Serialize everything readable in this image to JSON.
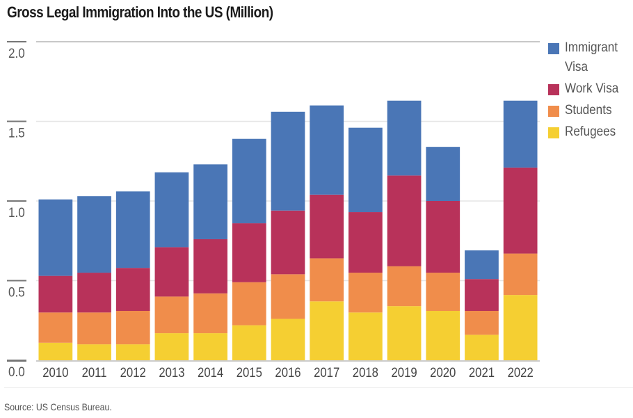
{
  "chart_data": {
    "type": "bar",
    "stacked": true,
    "title": "Gross Legal Immigration Into the US (Million)",
    "xlabel": "",
    "ylabel": "",
    "ylim": [
      0,
      2.0
    ],
    "yticks": [
      "0.0",
      "0.5",
      "1.0",
      "1.5",
      "2.0"
    ],
    "ytick_values": [
      0,
      0.5,
      1.0,
      1.5,
      2.0
    ],
    "grid": true,
    "legend_position": "right",
    "categories": [
      "2010",
      "2011",
      "2012",
      "2013",
      "2014",
      "2015",
      "2016",
      "2017",
      "2018",
      "2019",
      "2020",
      "2021",
      "2022"
    ],
    "series": [
      {
        "name": "Refugees",
        "color": "#f5cf32",
        "values": [
          0.11,
          0.1,
          0.1,
          0.17,
          0.17,
          0.22,
          0.26,
          0.37,
          0.3,
          0.34,
          0.31,
          0.16,
          0.41
        ]
      },
      {
        "name": "Students",
        "color": "#f08d4b",
        "values": [
          0.19,
          0.2,
          0.21,
          0.23,
          0.25,
          0.27,
          0.28,
          0.27,
          0.25,
          0.25,
          0.24,
          0.15,
          0.26
        ]
      },
      {
        "name": "Work Visa",
        "color": "#b8325a",
        "values": [
          0.23,
          0.25,
          0.27,
          0.31,
          0.34,
          0.37,
          0.4,
          0.4,
          0.38,
          0.57,
          0.45,
          0.2,
          0.54
        ]
      },
      {
        "name": "Immigrant Visa",
        "color": "#4a76b6",
        "values": [
          0.48,
          0.48,
          0.48,
          0.47,
          0.47,
          0.53,
          0.62,
          0.56,
          0.53,
          0.47,
          0.34,
          0.18,
          0.42
        ]
      }
    ],
    "legend": [
      {
        "label": "Immigrant Visa",
        "color": "#4a76b6"
      },
      {
        "label": "Work Visa",
        "color": "#b8325a"
      },
      {
        "label": "Students",
        "color": "#f08d4b"
      },
      {
        "label": "Refugees",
        "color": "#f5cf32"
      }
    ]
  },
  "footer": {
    "source": "Source: US Census Bureau."
  }
}
